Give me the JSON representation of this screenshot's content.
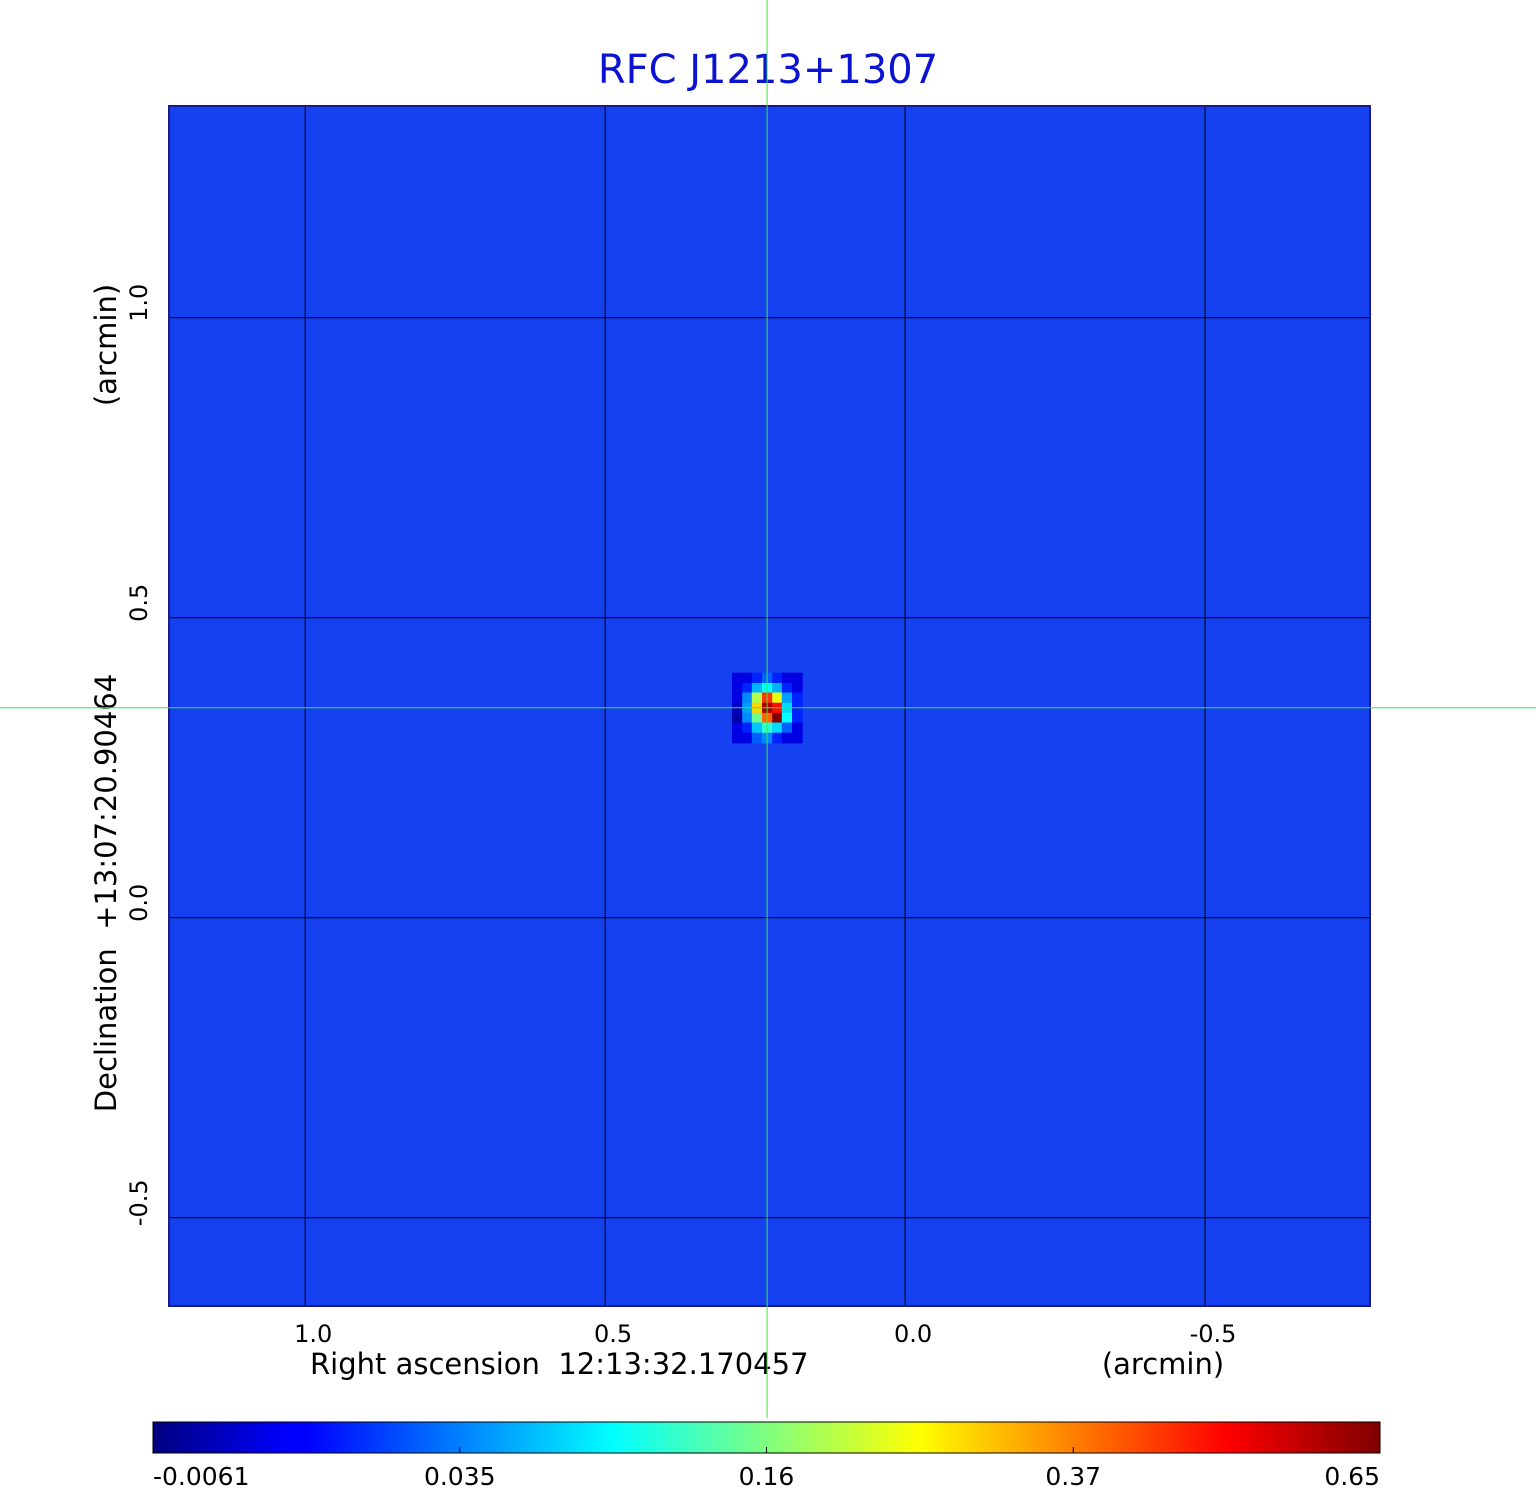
{
  "chart_data": {
    "type": "image",
    "title": "RFC J1213+1307",
    "xlabel": "Right ascension  12:13:32.170457",
    "xunit": "(arcmin)",
    "ylabel": "Declination  +13:07:20.90464",
    "yunit": "(arcmin)",
    "xlim": [
      1.227,
      -0.775
    ],
    "ylim": [
      -0.647,
      1.353
    ],
    "xticks": [
      {
        "value": 1,
        "label": "1.0"
      },
      0.5,
      {
        "value": 0,
        "label": "0.0"
      },
      -0.5
    ],
    "yticks": [
      {
        "value": 1,
        "label": "1.0"
      },
      0.5,
      {
        "value": 0,
        "label": "0.0"
      },
      -0.5
    ],
    "grid": true,
    "background_color": "#1541f0",
    "crosshair": {
      "x": 0.23,
      "y": 0.35,
      "color": "#33ee33"
    },
    "image": {
      "x": [
        0.28,
        0.263,
        0.247,
        0.23,
        0.213,
        0.197,
        0.18
      ],
      "y": [
        0.4,
        0.383,
        0.367,
        0.35,
        0.333,
        0.317,
        0.3
      ],
      "values": [
        [
          0.01,
          0.01,
          0.02,
          0.03,
          0.02,
          0.01,
          0.01
        ],
        [
          0.01,
          0.02,
          0.06,
          0.1,
          0.06,
          0.02,
          0.01
        ],
        [
          0.01,
          0.04,
          0.2,
          0.45,
          0.25,
          0.05,
          0.02
        ],
        [
          0.005,
          0.05,
          0.3,
          0.6,
          0.5,
          0.08,
          0.02
        ],
        [
          0.0,
          0.04,
          0.15,
          0.4,
          0.65,
          0.1,
          0.02
        ],
        [
          0.01,
          0.02,
          0.07,
          0.12,
          0.08,
          0.03,
          0.01
        ],
        [
          0.01,
          0.01,
          0.03,
          0.04,
          0.02,
          0.01,
          0.01
        ]
      ]
    },
    "colorbar": {
      "cmap": "jet",
      "ticks": [
        -0.0061,
        0.035,
        0.16,
        0.37,
        0.65
      ]
    }
  }
}
